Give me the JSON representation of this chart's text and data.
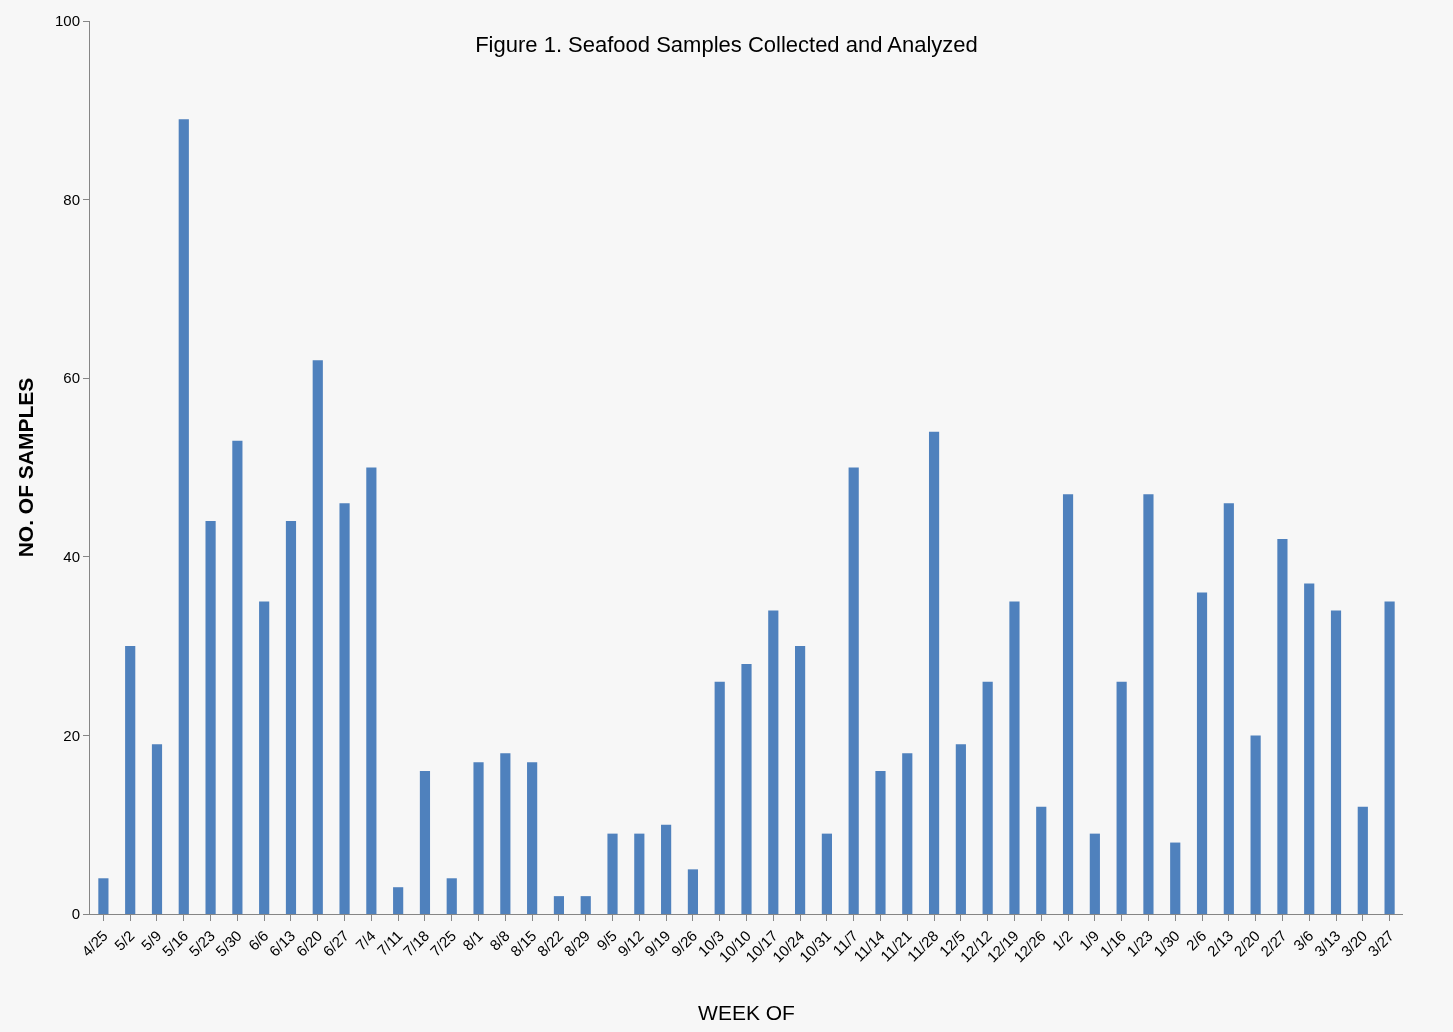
{
  "chart_data": {
    "type": "bar",
    "title": "Figure 1. Seafood Samples Collected and Analyzed",
    "xlabel": "WEEK OF",
    "ylabel": "NO. OF SAMPLES",
    "categories": [
      "4/25",
      "5/2",
      "5/9",
      "5/16",
      "5/23",
      "5/30",
      "6/6",
      "6/13",
      "6/20",
      "6/27",
      "7/4",
      "7/11",
      "7/18",
      "7/25",
      "8/1",
      "8/8",
      "8/15",
      "8/22",
      "8/29",
      "9/5",
      "9/12",
      "9/19",
      "9/26",
      "10/3",
      "10/10",
      "10/17",
      "10/24",
      "10/31",
      "11/7",
      "11/14",
      "11/21",
      "11/28",
      "12/5",
      "12/12",
      "12/19",
      "12/26",
      "1/2",
      "1/9",
      "1/16",
      "1/23",
      "1/30",
      "2/6",
      "2/13",
      "2/20",
      "2/27",
      "3/6",
      "3/13",
      "3/20",
      "3/27"
    ],
    "values": [
      4,
      30,
      19,
      89,
      44,
      53,
      35,
      44,
      62,
      46,
      50,
      3,
      16,
      4,
      17,
      18,
      17,
      2,
      2,
      9,
      9,
      10,
      5,
      26,
      28,
      34,
      30,
      9,
      50,
      16,
      18,
      54,
      19,
      26,
      35,
      12,
      47,
      9,
      26,
      47,
      8,
      36,
      46,
      20,
      42,
      37,
      34,
      12,
      35
    ],
    "color": "#4f81bd",
    "ylim": [
      0,
      100
    ],
    "yticks": [
      0,
      20,
      40,
      60,
      80,
      100
    ],
    "grid": false
  }
}
